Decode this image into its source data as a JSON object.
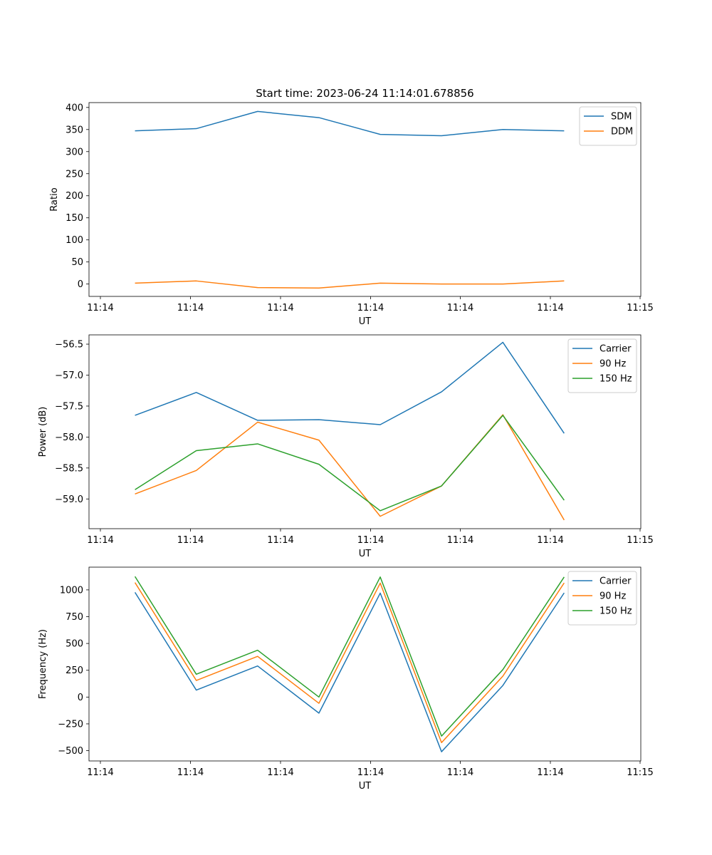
{
  "title": "Start time: 2023-06-24 11:14:01.678856",
  "chart_data": [
    {
      "type": "line",
      "title": "Start time: 2023-06-24 11:14:01.678856",
      "xlabel": "UT",
      "ylabel": "Ratio",
      "x_tick_labels": [
        "11:14",
        "11:14",
        "11:14",
        "11:14",
        "11:14",
        "11:14",
        "11:15"
      ],
      "x": [
        1,
        2,
        3,
        4,
        5,
        6,
        7,
        8
      ],
      "xlim": [
        0.25,
        9.25
      ],
      "y_ticks": [
        0,
        50,
        100,
        150,
        200,
        250,
        300,
        350,
        400
      ],
      "ylim": [
        -28,
        411
      ],
      "legend": "top-right",
      "series": [
        {
          "name": "SDM",
          "color": "#1f77b4",
          "values": [
            347,
            352,
            391,
            377,
            339,
            336,
            350,
            347
          ]
        },
        {
          "name": "DDM",
          "color": "#ff7f0e",
          "values": [
            2,
            7,
            -8,
            -9,
            2,
            0,
            0,
            7
          ]
        }
      ]
    },
    {
      "type": "line",
      "xlabel": "UT",
      "ylabel": "Power (dB)",
      "x_tick_labels": [
        "11:14",
        "11:14",
        "11:14",
        "11:14",
        "11:14",
        "11:14",
        "11:15"
      ],
      "x": [
        1,
        2,
        3,
        4,
        5,
        6,
        7,
        8
      ],
      "xlim": [
        0.25,
        9.25
      ],
      "y_ticks": [
        -59.0,
        -58.5,
        -58.0,
        -57.5,
        -57.0,
        -56.5
      ],
      "y_tick_labels": [
        "−59.0",
        "−58.5",
        "−58.0",
        "−57.5",
        "−57.0",
        "−56.5"
      ],
      "ylim": [
        -59.48,
        -56.35
      ],
      "legend": "top-right",
      "series": [
        {
          "name": "Carrier",
          "color": "#1f77b4",
          "values": [
            -57.65,
            -57.28,
            -57.73,
            -57.72,
            -57.8,
            -57.27,
            -56.47,
            -57.94
          ]
        },
        {
          "name": "90 Hz",
          "color": "#ff7f0e",
          "values": [
            -58.92,
            -58.54,
            -57.76,
            -58.05,
            -59.28,
            -58.79,
            -57.64,
            -59.34
          ]
        },
        {
          "name": "150 Hz",
          "color": "#2ca02c",
          "values": [
            -58.85,
            -58.22,
            -58.11,
            -58.44,
            -59.19,
            -58.79,
            -57.65,
            -59.02
          ]
        }
      ]
    },
    {
      "type": "line",
      "xlabel": "UT",
      "ylabel": "Frequency (Hz)",
      "x_tick_labels": [
        "11:14",
        "11:14",
        "11:14",
        "11:14",
        "11:14",
        "11:14",
        "11:15"
      ],
      "x": [
        1,
        2,
        3,
        4,
        5,
        6,
        7,
        8
      ],
      "xlim": [
        0.25,
        9.25
      ],
      "y_ticks": [
        -500,
        -250,
        0,
        250,
        500,
        750,
        1000
      ],
      "y_tick_labels": [
        "−500",
        "−250",
        "0",
        "250",
        "500",
        "750",
        "1000"
      ],
      "ylim": [
        -596,
        1212
      ],
      "legend": "top-right",
      "series": [
        {
          "name": "Carrier",
          "color": "#1f77b4",
          "values": [
            977,
            65,
            290,
            -150,
            970,
            -510,
            108,
            972
          ]
        },
        {
          "name": "90 Hz",
          "color": "#ff7f0e",
          "values": [
            1068,
            155,
            380,
            -58,
            1063,
            -425,
            195,
            1065
          ]
        },
        {
          "name": "150 Hz",
          "color": "#2ca02c",
          "values": [
            1125,
            213,
            437,
            0,
            1120,
            -364,
            256,
            1120
          ]
        }
      ]
    }
  ]
}
